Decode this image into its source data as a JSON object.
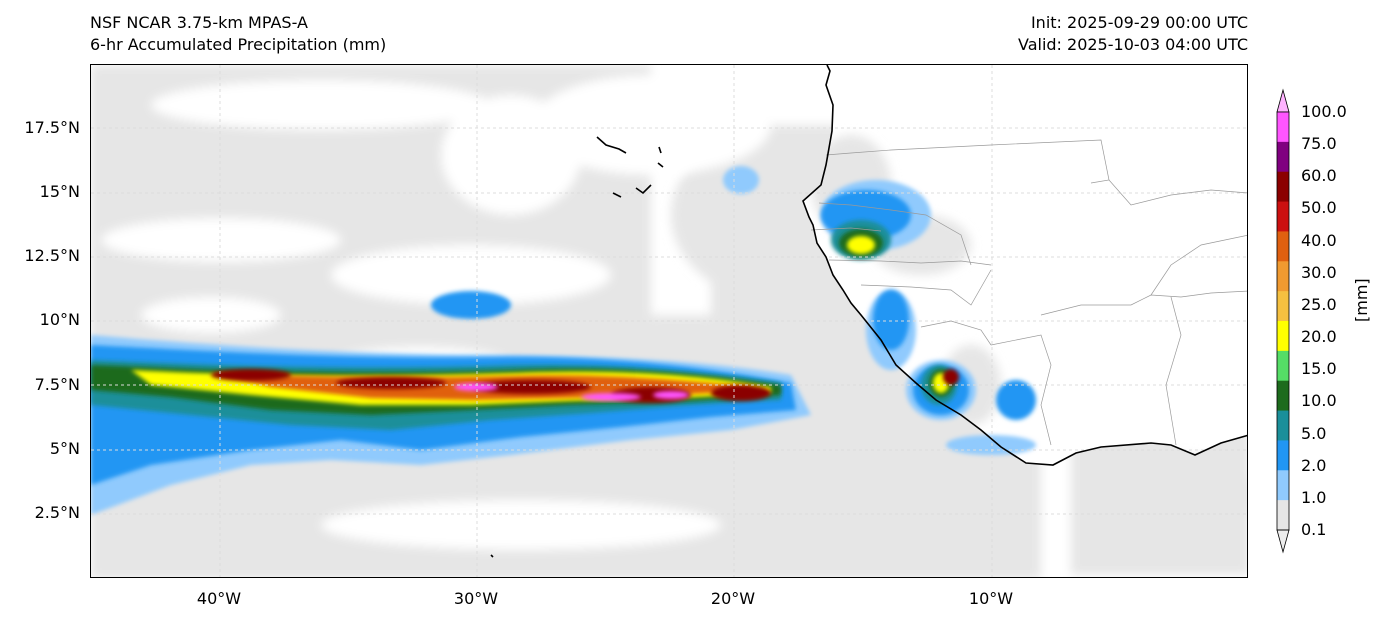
{
  "header": {
    "model": "NSF NCAR 3.75-km MPAS-A",
    "field": "6-hr Accumulated Precipitation (mm)",
    "init": "Init: 2025-09-29 00:00 UTC",
    "valid": "Valid: 2025-10-03 04:00 UTC"
  },
  "axes": {
    "lat_labels": [
      "17.5°N",
      "15°N",
      "12.5°N",
      "10°N",
      "7.5°N",
      "5°N",
      "2.5°N"
    ],
    "lon_labels": [
      "40°W",
      "30°W",
      "20°W",
      "10°W"
    ]
  },
  "colorbar": {
    "unit_label": "[mm]",
    "levels": [
      "100.0",
      "75.0",
      "60.0",
      "50.0",
      "40.0",
      "30.0",
      "25.0",
      "20.0",
      "15.0",
      "10.0",
      "5.0",
      "2.0",
      "1.0",
      "0.1"
    ],
    "colors": [
      "#ff55ff",
      "#800080",
      "#8b0000",
      "#cc1010",
      "#e06010",
      "#f09a30",
      "#f5c040",
      "#ffff00",
      "#55dd66",
      "#1d6b1d",
      "#1a8f9a",
      "#2196f3",
      "#90cafd",
      "#e6e6e6"
    ],
    "top_extend_color": "#ffb3ff",
    "bottom_extend_color": "#ededed"
  },
  "map": {
    "land_color": "#ffffff",
    "coastline_color": "#000000",
    "border_color": "#9a9a9a"
  }
}
